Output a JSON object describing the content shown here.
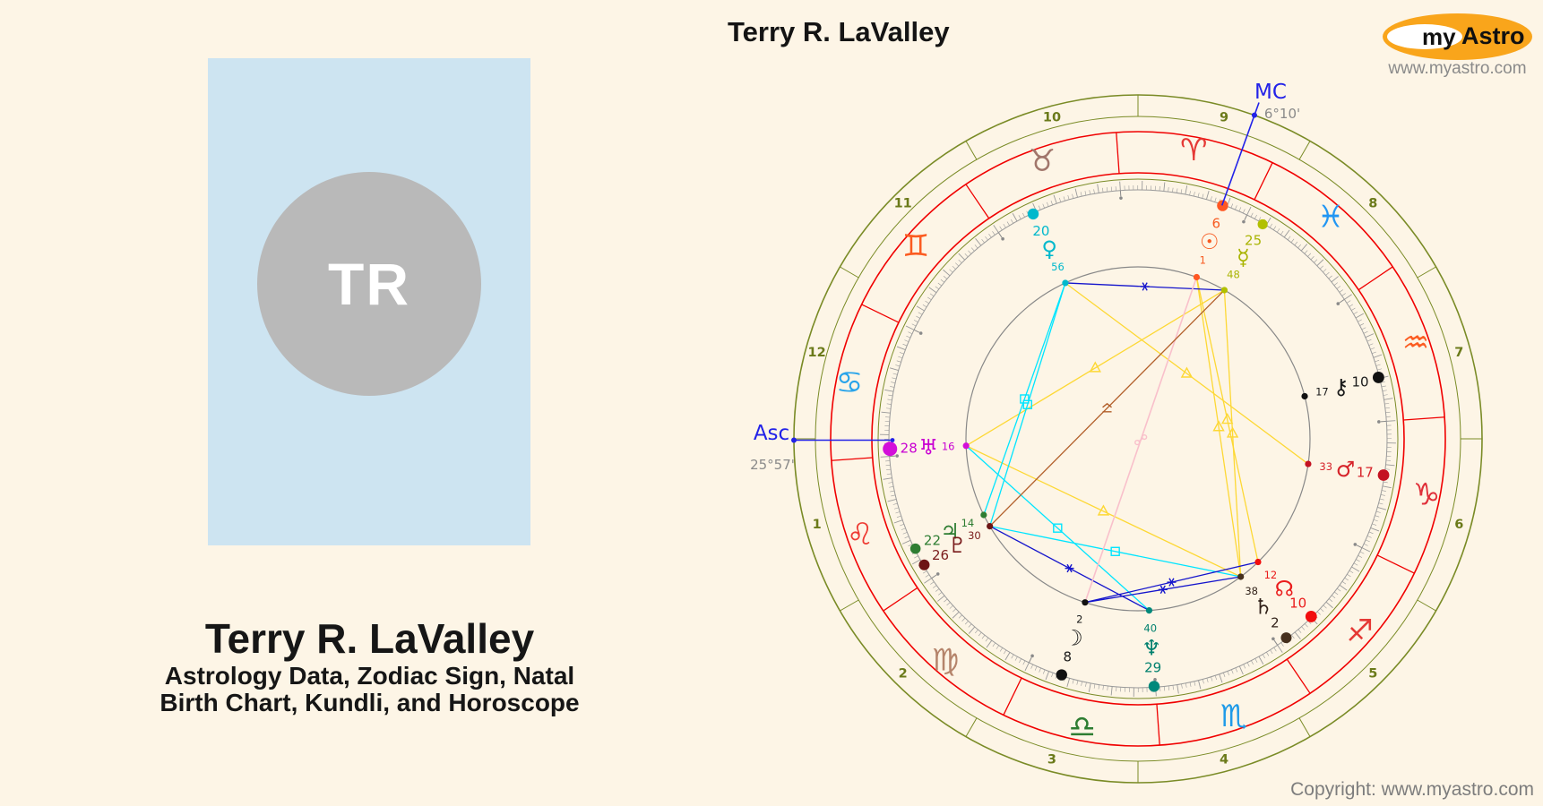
{
  "page": {
    "background": "#fdf5e6",
    "copyright": "Copyright: www.myastro.com"
  },
  "header": {
    "chart_title": "Terry R. LaValley"
  },
  "logo": {
    "brand_prefix": "my",
    "brand_suffix": "Astro",
    "website": "www.myastro.com",
    "colors": {
      "ellipse": "#f9a51b",
      "inner_ellipse": "#ffffff",
      "text": "#101010",
      "website_text": "#8a8a8a"
    }
  },
  "profile_card": {
    "initials": "TR",
    "title": "Terry R. LaValley",
    "subtitle_line1": "Astrology Data, Zodiac Sign, Natal",
    "subtitle_line2": "Birth Chart, Kundli, and Horoscope",
    "colors": {
      "card": "#cde4f1",
      "avatar": "#b9b9b9",
      "initials": "#ffffff",
      "text": "#161616"
    }
  },
  "chart_data": {
    "type": "natal-wheel",
    "title": "Terry R. LaValley",
    "house_system": "equal",
    "ascendant": {
      "label": "Asc",
      "degree_text": "25°57'",
      "sign": "Cancer",
      "longitude": 115.95
    },
    "midheaven": {
      "label": "MC",
      "degree_text": "6°10'",
      "sign": "Aries",
      "longitude": 6.17
    },
    "houses": [
      "1",
      "2",
      "3",
      "4",
      "5",
      "6",
      "7",
      "8",
      "9",
      "10",
      "11",
      "12"
    ],
    "signs": [
      {
        "name": "Aries",
        "glyph": "♈",
        "color": "#e53935",
        "start": 0
      },
      {
        "name": "Taurus",
        "glyph": "♉",
        "color": "#a1766b",
        "start": 30
      },
      {
        "name": "Gemini",
        "glyph": "♊",
        "color": "#fb5b20",
        "start": 60
      },
      {
        "name": "Cancer",
        "glyph": "♋",
        "color": "#29a4ea",
        "start": 90
      },
      {
        "name": "Leo",
        "glyph": "♌",
        "color": "#ee3b33",
        "start": 120
      },
      {
        "name": "Virgo",
        "glyph": "♍",
        "color": "#b5846b",
        "start": 150
      },
      {
        "name": "Libra",
        "glyph": "♎",
        "color": "#2e7d32",
        "start": 180
      },
      {
        "name": "Scorpio",
        "glyph": "♏",
        "color": "#1e9ae8",
        "start": 210
      },
      {
        "name": "Sagittarius",
        "glyph": "♐",
        "color": "#e53935",
        "start": 240
      },
      {
        "name": "Capricorn",
        "glyph": "♑",
        "color": "#e0303a",
        "start": 270
      },
      {
        "name": "Aquarius",
        "glyph": "♒",
        "color": "#fb5b20",
        "start": 300
      },
      {
        "name": "Pisces",
        "glyph": "♓",
        "color": "#2196f3",
        "start": 330
      }
    ],
    "planets": [
      {
        "name": "Sun",
        "glyph": "☉",
        "sign": "Aries",
        "degree": "6",
        "minute": "1",
        "longitude": 6.02,
        "color": "#f75b22",
        "dot_color": "#ff5722",
        "dot_r": 6.2
      },
      {
        "name": "Moon",
        "glyph": "☽",
        "sign": "Libra",
        "degree": "8",
        "minute": "2",
        "longitude": 188.03,
        "color": "#1a1a1a",
        "dot_color": "#111111",
        "dot_r": 6.2
      },
      {
        "name": "Mercury",
        "glyph": "☿",
        "sign": "Pisces",
        "degree": "25",
        "minute": "48",
        "longitude": 355.8,
        "color": "#a9b402",
        "dot_color": "#b2c000",
        "dot_r": 5.6
      },
      {
        "name": "Venus",
        "glyph": "♀",
        "sign": "Taurus",
        "degree": "20",
        "minute": "56",
        "longitude": 50.93,
        "color": "#00b8cc",
        "dot_color": "#00b8cc",
        "dot_r": 6.2
      },
      {
        "name": "Mars",
        "glyph": "♂",
        "sign": "Capricorn",
        "degree": "17",
        "minute": "33",
        "longitude": 287.55,
        "color": "#d6232a",
        "dot_color": "#c41322",
        "dot_r": 6.4
      },
      {
        "name": "Jupiter",
        "glyph": "♃",
        "sign": "Leo",
        "degree": "22",
        "minute": "14",
        "longitude": 142.23,
        "color": "#2e7d32",
        "dot_color": "#2e7d32",
        "dot_r": 5.8
      },
      {
        "name": "Saturn",
        "glyph": "♄",
        "sign": "Sagittarius",
        "degree": "2",
        "minute": "38",
        "longitude": 242.63,
        "color": "#32221a",
        "dot_color": "#46301e",
        "dot_r": 6.0
      },
      {
        "name": "Uranus",
        "glyph": "♅",
        "sign": "Cancer",
        "degree": "28",
        "minute": "16",
        "longitude": 118.27,
        "color": "#c800d2",
        "dot_color": "#d30fd9",
        "dot_r": 8.0
      },
      {
        "name": "Neptune",
        "glyph": "♆",
        "sign": "Libra",
        "degree": "29",
        "minute": "40",
        "longitude": 209.67,
        "color": "#00806e",
        "dot_color": "#00897b",
        "dot_r": 6.2
      },
      {
        "name": "Pluto",
        "glyph": "♇",
        "sign": "Leo",
        "degree": "26",
        "minute": "30",
        "longitude": 146.5,
        "color": "#7a1c1c",
        "dot_color": "#6d1515",
        "dot_r": 6.0
      },
      {
        "name": "North Node",
        "glyph": "☊",
        "sign": "Sagittarius",
        "degree": "10",
        "minute": "12",
        "longitude": 250.2,
        "color": "#ea1c1c",
        "dot_color": "#f20d0d",
        "dot_r": 6.4
      },
      {
        "name": "Chiron",
        "glyph": "⚷",
        "sign": "Aquarius",
        "degree": "10",
        "minute": "17",
        "longitude": 310.28,
        "color": "#1a1a1a",
        "dot_color": "#111111",
        "dot_r": 6.4
      }
    ],
    "aspects": [
      {
        "between": [
          "Venus",
          "Mars"
        ],
        "type": "trine"
      },
      {
        "between": [
          "Mercury",
          "Uranus"
        ],
        "type": "trine"
      },
      {
        "between": [
          "Uranus",
          "Saturn"
        ],
        "type": "trine"
      },
      {
        "between": [
          "Sun",
          "Saturn"
        ],
        "type": "trine"
      },
      {
        "between": [
          "Sun",
          "North Node"
        ],
        "type": "trine"
      },
      {
        "between": [
          "Mercury",
          "Saturn"
        ],
        "type": "trine"
      },
      {
        "between": [
          "Venus",
          "Jupiter"
        ],
        "type": "square"
      },
      {
        "between": [
          "Venus",
          "Pluto"
        ],
        "type": "square"
      },
      {
        "between": [
          "Uranus",
          "Neptune"
        ],
        "type": "square"
      },
      {
        "between": [
          "Pluto",
          "Saturn"
        ],
        "type": "square"
      },
      {
        "between": [
          "Mercury",
          "Venus"
        ],
        "type": "sextile"
      },
      {
        "between": [
          "Moon",
          "North Node"
        ],
        "type": "sextile"
      },
      {
        "between": [
          "Moon",
          "Saturn"
        ],
        "type": "sextile"
      },
      {
        "between": [
          "Pluto",
          "Neptune"
        ],
        "type": "sextile"
      },
      {
        "between": [
          "Sun",
          "Moon"
        ],
        "type": "opposition"
      },
      {
        "between": [
          "Mercury",
          "Pluto"
        ],
        "type": "quincunx"
      }
    ],
    "aspect_colors": {
      "trine": "#fdd835",
      "square": "#00e5ff",
      "sextile": "#1414cc",
      "opposition": "#f9c0cb",
      "quincunx": "#b25f2a"
    },
    "wheel_colors": {
      "outer_ring": "#7a8b26",
      "zodiac_ring": "#f00000",
      "ticks": "#9a9a9a",
      "pins": "#8a8a8a",
      "inner_circle": "#888888",
      "house_numbers": "#6b7a1a",
      "angles": "#2222e8",
      "angle_degree_text": "#8a8a8a"
    }
  }
}
